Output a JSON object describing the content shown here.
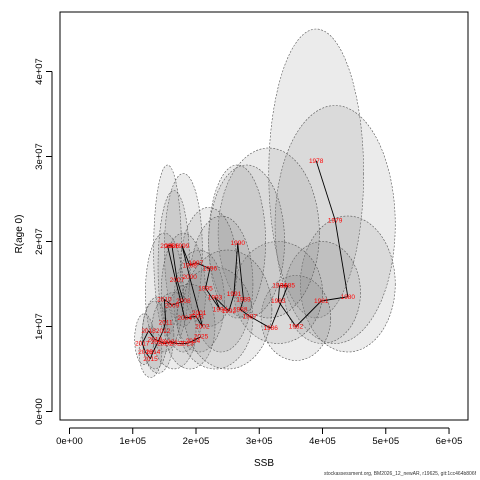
{
  "chart_data": {
    "type": "scatter",
    "xlabel": "SSB",
    "ylabel": "R(age 0)",
    "xlim": [
      -15000,
      630000
    ],
    "ylim": [
      -1000000,
      47000000
    ],
    "x_ticks": [
      {
        "value": 0,
        "label": "0e+00"
      },
      {
        "value": 100000,
        "label": "1e+05"
      },
      {
        "value": 200000,
        "label": "2e+05"
      },
      {
        "value": 300000,
        "label": "3e+05"
      },
      {
        "value": 400000,
        "label": "4e+05"
      },
      {
        "value": 500000,
        "label": "5e+05"
      },
      {
        "value": 600000,
        "label": "6e+05"
      }
    ],
    "y_ticks": [
      {
        "value": 0,
        "label": "0e+00"
      },
      {
        "value": 10000000,
        "label": "1e+07"
      },
      {
        "value": 20000000,
        "label": "2e+07"
      },
      {
        "value": 30000000,
        "label": "3e+07"
      },
      {
        "value": 40000000,
        "label": "4e+07"
      }
    ],
    "point_color": "#ff0000",
    "line_color": "#000000",
    "ellipse_fill": "#808080",
    "points": [
      {
        "year": "1978",
        "ssb": 390000,
        "rec": 29500000
      },
      {
        "year": "1979",
        "ssb": 420000,
        "rec": 22500000
      },
      {
        "year": "1980",
        "ssb": 440000,
        "rec": 13500000
      },
      {
        "year": "1981",
        "ssb": 398000,
        "rec": 13000000
      },
      {
        "year": "1982",
        "ssb": 358000,
        "rec": 10000000
      },
      {
        "year": "1983",
        "ssb": 330000,
        "rec": 13000000
      },
      {
        "year": "1984",
        "ssb": 332000,
        "rec": 14800000
      },
      {
        "year": "1985",
        "ssb": 345000,
        "rec": 14800000
      },
      {
        "year": "1986",
        "ssb": 318000,
        "rec": 9800000
      },
      {
        "year": "1987",
        "ssb": 285000,
        "rec": 11200000
      },
      {
        "year": "1988",
        "ssb": 270000,
        "rec": 12000000
      },
      {
        "year": "1989",
        "ssb": 275000,
        "rec": 13200000
      },
      {
        "year": "1990",
        "ssb": 266000,
        "rec": 19800000
      },
      {
        "year": "1991",
        "ssb": 260000,
        "rec": 13800000
      },
      {
        "year": "1992",
        "ssb": 252000,
        "rec": 11800000
      },
      {
        "year": "1993",
        "ssb": 230000,
        "rec": 13400000
      },
      {
        "year": "1994",
        "ssb": 238000,
        "rec": 12000000
      },
      {
        "year": "1995",
        "ssb": 215000,
        "rec": 14500000
      },
      {
        "year": "1996",
        "ssb": 222000,
        "rec": 16800000
      },
      {
        "year": "1997",
        "ssb": 200000,
        "rec": 17500000
      },
      {
        "year": "1998",
        "ssb": 190000,
        "rec": 17200000
      },
      {
        "year": "1999",
        "ssb": 178000,
        "rec": 19500000
      },
      {
        "year": "2000",
        "ssb": 190000,
        "rec": 15800000
      },
      {
        "year": "2001",
        "ssb": 205000,
        "rec": 11600000
      },
      {
        "year": "2002",
        "ssb": 210000,
        "rec": 10000000
      },
      {
        "year": "2003",
        "ssb": 200000,
        "rec": 11200000
      },
      {
        "year": "2004",
        "ssb": 182000,
        "rec": 11000000
      },
      {
        "year": "2005",
        "ssb": 155000,
        "rec": 19500000
      },
      {
        "year": "2006",
        "ssb": 162000,
        "rec": 19500000
      },
      {
        "year": "2007",
        "ssb": 170000,
        "rec": 15500000
      },
      {
        "year": "2008",
        "ssb": 180000,
        "rec": 13000000
      },
      {
        "year": "2009",
        "ssb": 162000,
        "rec": 12500000
      },
      {
        "year": "2010",
        "ssb": 150000,
        "rec": 13200000
      },
      {
        "year": "2011",
        "ssb": 152000,
        "rec": 10500000
      },
      {
        "year": "2012",
        "ssb": 148000,
        "rec": 9500000
      },
      {
        "year": "2013",
        "ssb": 140000,
        "rec": 8200000
      },
      {
        "year": "2014",
        "ssb": 132000,
        "rec": 7000000
      },
      {
        "year": "2015",
        "ssb": 128000,
        "rec": 6200000
      },
      {
        "year": "2016",
        "ssb": 120000,
        "rec": 7000000
      },
      {
        "year": "2017",
        "ssb": 115000,
        "rec": 8000000
      },
      {
        "year": "2018",
        "ssb": 125000,
        "rec": 9500000
      },
      {
        "year": "2019",
        "ssb": 135000,
        "rec": 8500000
      },
      {
        "year": "2020",
        "ssb": 150000,
        "rec": 8000000
      },
      {
        "year": "2021",
        "ssb": 160000,
        "rec": 8200000
      },
      {
        "year": "2022",
        "ssb": 170000,
        "rec": 8000000
      },
      {
        "year": "2023",
        "ssb": 185000,
        "rec": 8000000
      },
      {
        "year": "2024",
        "ssb": 195000,
        "rec": 8300000
      },
      {
        "year": "2025",
        "ssb": 208000,
        "rec": 8800000
      }
    ],
    "ellipses": [
      {
        "year": "1978",
        "cx": 390000,
        "cy": 28000000,
        "rx": 75000,
        "ry": 17000000
      },
      {
        "year": "1979",
        "cx": 420000,
        "cy": 22000000,
        "rx": 95000,
        "ry": 14000000
      },
      {
        "year": "1980",
        "cx": 440000,
        "cy": 15000000,
        "rx": 75000,
        "ry": 8000000
      },
      {
        "year": "1981",
        "cx": 400000,
        "cy": 14000000,
        "rx": 60000,
        "ry": 6000000
      },
      {
        "year": "1982",
        "cx": 358000,
        "cy": 11000000,
        "rx": 55000,
        "ry": 5000000
      },
      {
        "year": "1983",
        "cx": 330000,
        "cy": 14000000,
        "rx": 70000,
        "ry": 6000000
      },
      {
        "year": "1986",
        "cx": 315000,
        "cy": 21000000,
        "rx": 80000,
        "ry": 10000000
      },
      {
        "year": "1987",
        "cx": 280000,
        "cy": 20000000,
        "rx": 60000,
        "ry": 9000000
      },
      {
        "year": "1990",
        "cx": 265000,
        "cy": 20000000,
        "rx": 45000,
        "ry": 9000000
      },
      {
        "year": "1993",
        "cx": 240000,
        "cy": 15000000,
        "rx": 50000,
        "ry": 8000000
      },
      {
        "year": "1996",
        "cx": 220000,
        "cy": 17000000,
        "rx": 45000,
        "ry": 7000000
      },
      {
        "year": "1999",
        "cx": 180000,
        "cy": 19000000,
        "rx": 30000,
        "ry": 9000000
      },
      {
        "year": "2001",
        "cx": 205000,
        "cy": 13000000,
        "rx": 40000,
        "ry": 6000000
      },
      {
        "year": "2005",
        "cx": 155000,
        "cy": 19000000,
        "rx": 22000,
        "ry": 10000000
      },
      {
        "year": "2006",
        "cx": 165000,
        "cy": 17000000,
        "rx": 25000,
        "ry": 9000000
      },
      {
        "year": "2008",
        "cx": 180000,
        "cy": 14000000,
        "rx": 35000,
        "ry": 7000000
      },
      {
        "year": "2010",
        "cx": 150000,
        "cy": 14000000,
        "rx": 30000,
        "ry": 7000000
      },
      {
        "year": "2013",
        "cx": 140000,
        "cy": 9000000,
        "rx": 25000,
        "ry": 4500000
      },
      {
        "year": "2015",
        "cx": 128000,
        "cy": 7000000,
        "rx": 18000,
        "ry": 3000000
      },
      {
        "year": "2017",
        "cx": 118000,
        "cy": 8500000,
        "rx": 15000,
        "ry": 3000000
      },
      {
        "year": "2019",
        "cx": 135000,
        "cy": 9000000,
        "rx": 20000,
        "ry": 4000000
      },
      {
        "year": "2021",
        "cx": 165000,
        "cy": 9500000,
        "rx": 35000,
        "ry": 4500000
      },
      {
        "year": "2023",
        "cx": 190000,
        "cy": 10000000,
        "rx": 40000,
        "ry": 5000000
      },
      {
        "year": "2024",
        "cx": 230000,
        "cy": 11000000,
        "rx": 60000,
        "ry": 6000000
      },
      {
        "year": "2025",
        "cx": 250000,
        "cy": 12000000,
        "rx": 70000,
        "ry": 7000000
      }
    ]
  },
  "footer": "stockassessment.org, BM2026_12_newAR, r19625, git:1cc464b806f"
}
